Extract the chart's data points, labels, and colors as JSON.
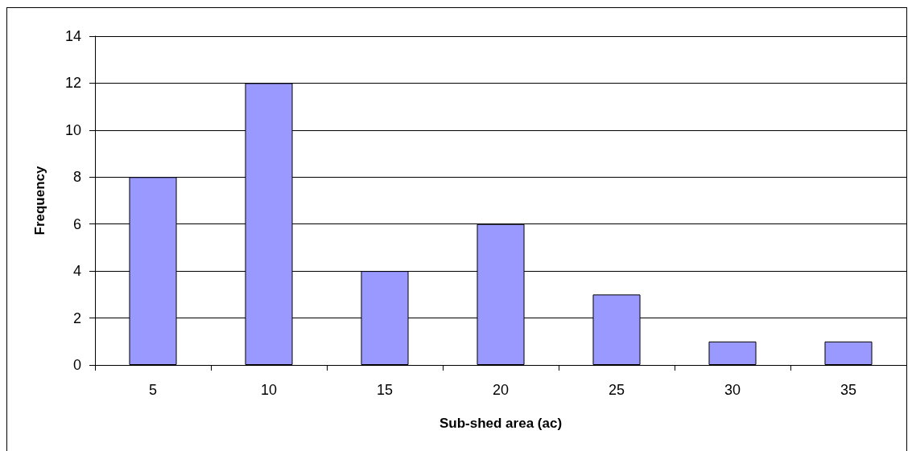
{
  "chart_data": {
    "type": "bar",
    "xlabel": "Sub-shed area (ac)",
    "ylabel": "Frequency",
    "categories": [
      "5",
      "10",
      "15",
      "20",
      "25",
      "30",
      "35"
    ],
    "values": [
      8,
      12,
      4,
      6,
      3,
      1,
      1
    ],
    "color": "#9999ff",
    "ylim": [
      0,
      14
    ],
    "yticks": [
      0,
      2,
      4,
      6,
      8,
      10,
      12,
      14
    ],
    "grid": "y"
  }
}
